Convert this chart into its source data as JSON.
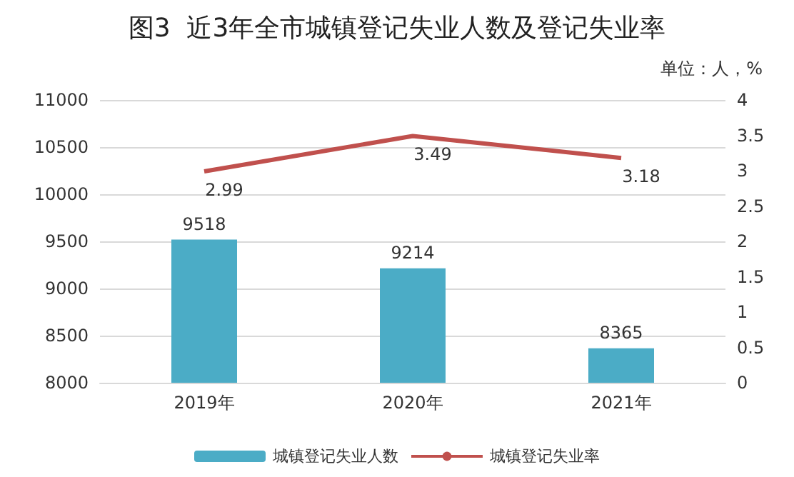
{
  "chart_data": {
    "type": "bar",
    "title": "图3  近3年全市城镇登记失业人数及登记失业率",
    "annotations": [
      "单位：人，%"
    ],
    "categories": [
      "2019年",
      "2020年",
      "2021年"
    ],
    "series": [
      {
        "name": "城镇登记失业人数",
        "color": "#4bacc6",
        "values": [
          9518,
          9214,
          8365
        ]
      },
      {
        "name": "城镇登记失业率",
        "type": "line",
        "axis": "y2",
        "color": "#c0504d",
        "values": [
          2.99,
          3.49,
          3.18
        ]
      }
    ],
    "ylim": [
      8000,
      11000
    ],
    "yticks": [
      8000,
      8500,
      9000,
      9500,
      10000,
      10500,
      11000
    ],
    "y2lim": [
      0,
      4
    ],
    "y2ticks": [
      0,
      0.5,
      1,
      1.5,
      2,
      2.5,
      3,
      3.5,
      4
    ],
    "data_labels": true,
    "grid": "y",
    "legend": "bottom",
    "marker": "none"
  }
}
